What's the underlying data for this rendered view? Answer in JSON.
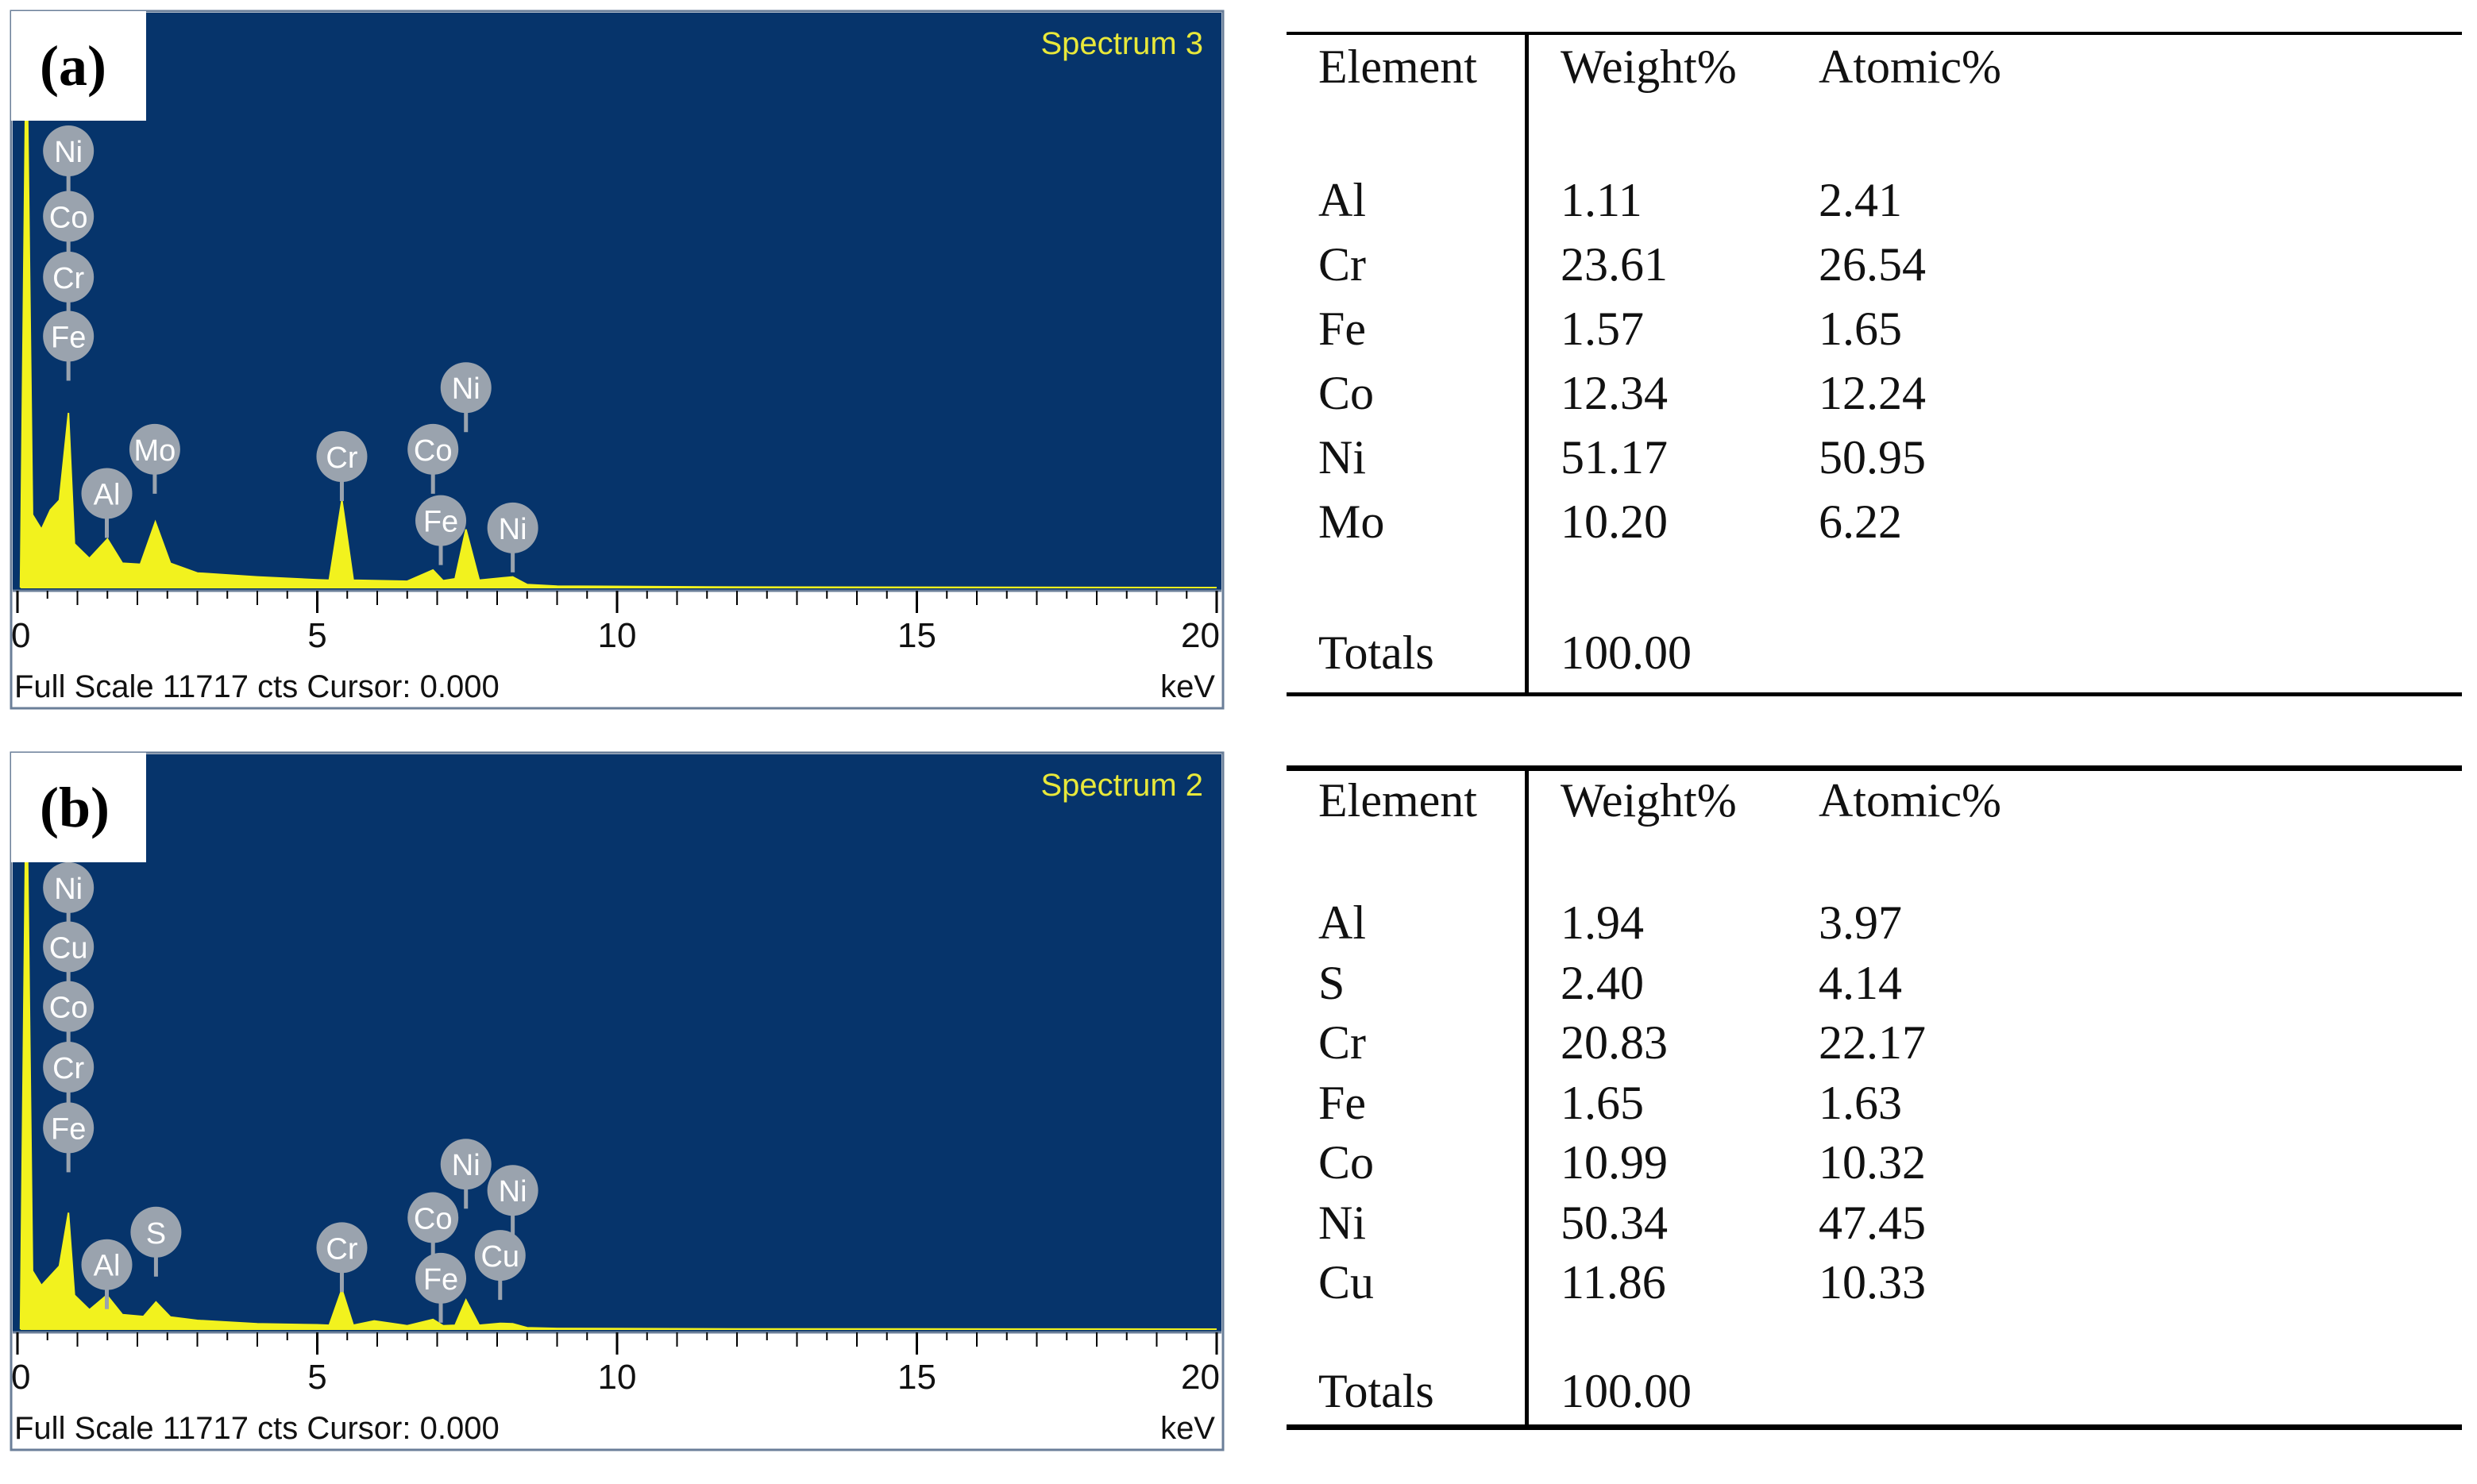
{
  "panels": [
    {
      "label": "(a)",
      "spectrum": {
        "title": "Spectrum 3",
        "footer_left": "Full Scale 11717 cts Cursor: 0.000",
        "footer_right": "keV"
      },
      "table": {
        "headers": [
          "Element",
          "Weight%",
          "Atomic%"
        ],
        "rows": [
          [
            "Al",
            "1.11",
            "2.41"
          ],
          [
            "Cr",
            "23.61",
            "26.54"
          ],
          [
            "Fe",
            "1.57",
            "1.65"
          ],
          [
            "Co",
            "12.34",
            "12.24"
          ],
          [
            "Ni",
            "51.17",
            "50.95"
          ],
          [
            "Mo",
            "10.20",
            "6.22"
          ]
        ],
        "totals_label": "Totals",
        "totals_value": "100.00"
      }
    },
    {
      "label": "(b)",
      "spectrum": {
        "title": "Spectrum 2",
        "footer_left": "Full Scale 11717 cts Cursor: 0.000",
        "footer_right": "keV"
      },
      "table": {
        "headers": [
          "Element",
          "Weight%",
          "Atomic%"
        ],
        "rows": [
          [
            "Al",
            "1.94",
            "3.97"
          ],
          [
            "S",
            "2.40",
            "4.14"
          ],
          [
            "Cr",
            "20.83",
            "22.17"
          ],
          [
            "Fe",
            "1.65",
            "1.63"
          ],
          [
            "Co",
            "10.99",
            "10.32"
          ],
          [
            "Ni",
            "50.34",
            "47.45"
          ],
          [
            "Cu",
            "11.86",
            "10.33"
          ]
        ],
        "totals_label": "Totals",
        "totals_value": "100.00"
      }
    }
  ],
  "chart_data": [
    {
      "type": "area",
      "title": "Spectrum 3",
      "xlabel": "keV",
      "xlim": [
        0,
        20
      ],
      "x_ticks": [
        0,
        5,
        10,
        15,
        20
      ],
      "ylim": [
        0,
        11717
      ],
      "colors": {
        "background": "#06346B",
        "fill": "#F2F21E",
        "title": "#E8E83A",
        "marker": "#9AA3AE"
      },
      "series": [
        {
          "values": [
            [
              0.05,
              0
            ],
            [
              0.15,
              11717
            ],
            [
              0.25,
              1500
            ],
            [
              0.4,
              1200
            ],
            [
              0.55,
              1600
            ],
            [
              0.7,
              1800
            ],
            [
              0.85,
              3600
            ],
            [
              0.95,
              900
            ],
            [
              1.2,
              600
            ],
            [
              1.5,
              1000
            ],
            [
              1.75,
              500
            ],
            [
              2.05,
              480
            ],
            [
              2.3,
              1350
            ],
            [
              2.55,
              500
            ],
            [
              3,
              300
            ],
            [
              4,
              220
            ],
            [
              5,
              160
            ],
            [
              5.2,
              150
            ],
            [
              5.41,
              1800
            ],
            [
              5.6,
              150
            ],
            [
              6.5,
              130
            ],
            [
              6.93,
              360
            ],
            [
              7.1,
              140
            ],
            [
              7.3,
              180
            ],
            [
              7.48,
              1200
            ],
            [
              7.7,
              150
            ],
            [
              8.26,
              220
            ],
            [
              8.5,
              60
            ],
            [
              9,
              30
            ],
            [
              12,
              10
            ],
            [
              20,
              0
            ]
          ]
        }
      ],
      "peak_labels": [
        {
          "label": "Ni",
          "energy": 0.85,
          "counts": 9000
        },
        {
          "label": "Co",
          "energy": 0.85,
          "counts": 7650
        },
        {
          "label": "Cr",
          "energy": 0.85,
          "counts": 6400
        },
        {
          "label": "Fe",
          "energy": 0.85,
          "counts": 5180
        },
        {
          "label": "Al",
          "energy": 1.49,
          "counts": 1940
        },
        {
          "label": "Mo",
          "energy": 2.29,
          "counts": 2850
        },
        {
          "label": "Cr",
          "energy": 5.41,
          "counts": 2700
        },
        {
          "label": "Co",
          "energy": 6.93,
          "counts": 2850
        },
        {
          "label": "Ni",
          "energy": 7.48,
          "counts": 4120
        },
        {
          "label": "Fe",
          "energy": 7.06,
          "counts": 1380
        },
        {
          "label": "Ni",
          "energy": 8.26,
          "counts": 1230
        }
      ]
    },
    {
      "type": "area",
      "title": "Spectrum 2",
      "xlabel": "keV",
      "xlim": [
        0,
        20
      ],
      "x_ticks": [
        0,
        5,
        10,
        15,
        20
      ],
      "ylim": [
        0,
        11717
      ],
      "colors": {
        "background": "#06346B",
        "fill": "#F2F21E",
        "title": "#E8E83A",
        "marker": "#9AA3AE"
      },
      "series": [
        {
          "values": [
            [
              0.05,
              0
            ],
            [
              0.15,
              11717
            ],
            [
              0.25,
              1200
            ],
            [
              0.4,
              900
            ],
            [
              0.55,
              1100
            ],
            [
              0.7,
              1300
            ],
            [
              0.85,
              2400
            ],
            [
              0.95,
              700
            ],
            [
              1.2,
              400
            ],
            [
              1.49,
              700
            ],
            [
              1.75,
              300
            ],
            [
              2.1,
              260
            ],
            [
              2.31,
              560
            ],
            [
              2.55,
              250
            ],
            [
              3,
              180
            ],
            [
              4,
              110
            ],
            [
              5,
              90
            ],
            [
              5.2,
              80
            ],
            [
              5.41,
              820
            ],
            [
              5.6,
              80
            ],
            [
              5.95,
              170
            ],
            [
              6.5,
              70
            ],
            [
              6.93,
              200
            ],
            [
              7.1,
              70
            ],
            [
              7.3,
              80
            ],
            [
              7.48,
              600
            ],
            [
              7.7,
              80
            ],
            [
              8.05,
              120
            ],
            [
              8.26,
              110
            ],
            [
              8.5,
              30
            ],
            [
              9,
              15
            ],
            [
              12,
              5
            ],
            [
              20,
              0
            ]
          ]
        }
      ],
      "peak_labels": [
        {
          "label": "Ni",
          "energy": 0.85,
          "counts": 9100
        },
        {
          "label": "Cu",
          "energy": 0.85,
          "counts": 7880
        },
        {
          "label": "Co",
          "energy": 0.85,
          "counts": 6650
        },
        {
          "label": "Cr",
          "energy": 0.85,
          "counts": 5400
        },
        {
          "label": "Fe",
          "energy": 0.85,
          "counts": 4150
        },
        {
          "label": "Al",
          "energy": 1.49,
          "counts": 1330
        },
        {
          "label": "S",
          "energy": 2.31,
          "counts": 2000
        },
        {
          "label": "Cr",
          "energy": 5.41,
          "counts": 1680
        },
        {
          "label": "Co",
          "energy": 6.93,
          "counts": 2300
        },
        {
          "label": "Ni",
          "energy": 7.48,
          "counts": 3400
        },
        {
          "label": "Fe",
          "energy": 7.06,
          "counts": 1050
        },
        {
          "label": "Ni",
          "energy": 8.26,
          "counts": 2860
        },
        {
          "label": "Cu",
          "energy": 8.05,
          "counts": 1520
        }
      ]
    }
  ]
}
